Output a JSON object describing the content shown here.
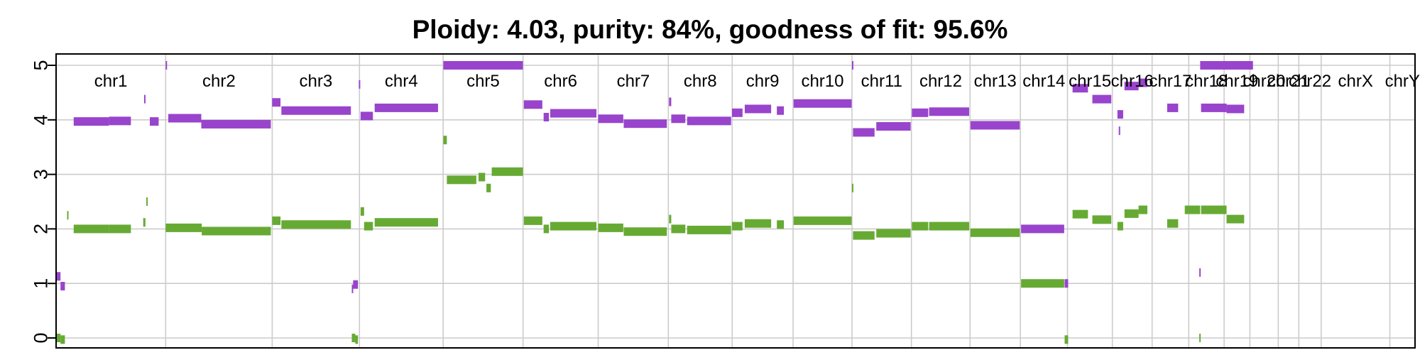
{
  "chart_data": {
    "type": "segment",
    "title": "Ploidy: 4.03, purity: 84%, goodness of fit: 95.6%",
    "xlabel": "",
    "ylabel": "",
    "ylim": [
      0,
      5
    ],
    "yticks": [
      0,
      1,
      2,
      3,
      4,
      5
    ],
    "grid": true,
    "colors": {
      "total": "#9944CC",
      "minor": "#66AA33",
      "grid": "#CCCCCC"
    },
    "chromosomes": [
      {
        "name": "chr1",
        "start": 0,
        "end": 248.96
      },
      {
        "name": "chr2",
        "start": 248.96,
        "end": 491.15
      },
      {
        "name": "chr3",
        "start": 491.15,
        "end": 689.45
      },
      {
        "name": "chr4",
        "start": 689.45,
        "end": 879.66
      },
      {
        "name": "chr5",
        "start": 879.66,
        "end": 1061.2
      },
      {
        "name": "chr6",
        "start": 1061.2,
        "end": 1232.0
      },
      {
        "name": "chr7",
        "start": 1232.0,
        "end": 1391.35
      },
      {
        "name": "chr8",
        "start": 1391.35,
        "end": 1536.49
      },
      {
        "name": "chr9",
        "start": 1536.49,
        "end": 1674.88
      },
      {
        "name": "chr10",
        "start": 1674.88,
        "end": 1808.68
      },
      {
        "name": "chr11",
        "start": 1808.68,
        "end": 1943.77
      },
      {
        "name": "chr12",
        "start": 1943.77,
        "end": 2077.05
      },
      {
        "name": "chr13",
        "start": 2077.05,
        "end": 2191.42
      },
      {
        "name": "chr14",
        "start": 2191.42,
        "end": 2298.46
      },
      {
        "name": "chr15",
        "start": 2298.46,
        "end": 2400.45
      },
      {
        "name": "chr16",
        "start": 2400.45,
        "end": 2490.79
      },
      {
        "name": "chr17",
        "start": 2490.79,
        "end": 2574.05
      },
      {
        "name": "chr18",
        "start": 2574.05,
        "end": 2654.43
      },
      {
        "name": "chr19",
        "start": 2654.43,
        "end": 2713.05
      },
      {
        "name": "chr20",
        "start": 2713.05,
        "end": 2777.5
      },
      {
        "name": "chr21",
        "start": 2777.5,
        "end": 2824.21
      },
      {
        "name": "chr22",
        "start": 2824.21,
        "end": 2875.03
      },
      {
        "name": "chrX",
        "start": 2875.03,
        "end": 3031.07
      },
      {
        "name": "chrY",
        "start": 3031.07,
        "end": 3088.3
      }
    ],
    "series": [
      {
        "key": "total",
        "segments": [
          [
            0,
            10,
            1.13
          ],
          [
            10,
            20,
            0.95
          ],
          [
            40,
            120,
            3.97
          ],
          [
            120,
            170,
            3.98
          ],
          [
            200,
            203,
            4.38
          ],
          [
            213,
            233,
            3.97
          ],
          [
            248.96,
            249.5,
            5.0
          ],
          [
            255,
            330,
            4.03
          ],
          [
            330,
            488,
            3.92
          ],
          [
            491,
            510,
            4.32
          ],
          [
            512,
            670,
            4.17
          ],
          [
            672,
            675,
            0.9
          ],
          [
            675,
            686,
            0.98
          ],
          [
            688,
            689,
            4.65
          ],
          [
            692,
            720,
            4.07
          ],
          [
            724,
            868,
            4.22
          ],
          [
            880,
            1061,
            5.0
          ],
          [
            1063,
            1105,
            4.28
          ],
          [
            1108,
            1120,
            4.05
          ],
          [
            1123,
            1228,
            4.12
          ],
          [
            1232,
            1289,
            4.02
          ],
          [
            1290,
            1388,
            3.93
          ],
          [
            1393,
            1398,
            4.33
          ],
          [
            1398,
            1430,
            4.02
          ],
          [
            1434,
            1534,
            3.98
          ],
          [
            1536,
            1560,
            4.13
          ],
          [
            1565,
            1625,
            4.2
          ],
          [
            1638,
            1654,
            4.17
          ],
          [
            1676,
            1808,
            4.3
          ],
          [
            1808.7,
            1810,
            5.0
          ],
          [
            1811,
            1860,
            3.77
          ],
          [
            1864,
            1942,
            3.88
          ],
          [
            1945,
            1982,
            4.13
          ],
          [
            1984,
            2075,
            4.15
          ],
          [
            2078,
            2190,
            3.9
          ],
          [
            2193,
            2291,
            2.0
          ],
          [
            2292,
            2300,
            1.0
          ],
          [
            2310,
            2345,
            4.58
          ],
          [
            2355,
            2398,
            4.38
          ],
          [
            2412,
            2425,
            4.1
          ],
          [
            2415,
            2418,
            3.8
          ],
          [
            2428,
            2460,
            4.62
          ],
          [
            2460,
            2480,
            4.68
          ],
          [
            2525,
            2550,
            4.22
          ],
          [
            2598,
            2600,
            1.2
          ],
          [
            2600,
            2720,
            5.0
          ],
          [
            2602,
            2660,
            4.22
          ],
          [
            2660,
            2700,
            4.2
          ]
        ]
      },
      {
        "key": "minor",
        "segments": [
          [
            0,
            10,
            0.0
          ],
          [
            10,
            20,
            -0.03
          ],
          [
            25,
            27,
            2.25
          ],
          [
            40,
            120,
            2.0
          ],
          [
            120,
            170,
            2.0
          ],
          [
            198,
            203,
            2.12
          ],
          [
            205,
            207,
            2.5
          ],
          [
            248.96,
            331,
            2.02
          ],
          [
            331,
            488,
            1.96
          ],
          [
            491,
            510,
            2.15
          ],
          [
            512,
            670,
            2.08
          ],
          [
            672,
            680,
            0.0
          ],
          [
            680,
            686,
            -0.03
          ],
          [
            692,
            700,
            2.32
          ],
          [
            700,
            720,
            2.05
          ],
          [
            724,
            868,
            2.12
          ],
          [
            880,
            888,
            3.63
          ],
          [
            888,
            955,
            2.9
          ],
          [
            960,
            975,
            2.95
          ],
          [
            978,
            988,
            2.75
          ],
          [
            990,
            1061,
            3.05
          ],
          [
            1063,
            1105,
            2.15
          ],
          [
            1108,
            1120,
            2.0
          ],
          [
            1123,
            1228,
            2.05
          ],
          [
            1232,
            1289,
            2.02
          ],
          [
            1290,
            1388,
            1.95
          ],
          [
            1393,
            1398,
            2.18
          ],
          [
            1398,
            1430,
            2.0
          ],
          [
            1434,
            1534,
            1.98
          ],
          [
            1536,
            1560,
            2.05
          ],
          [
            1565,
            1625,
            2.1
          ],
          [
            1638,
            1654,
            2.08
          ],
          [
            1676,
            1808,
            2.15
          ],
          [
            1808.7,
            1810,
            2.75
          ],
          [
            1811,
            1860,
            1.88
          ],
          [
            1864,
            1942,
            1.92
          ],
          [
            1945,
            1982,
            2.05
          ],
          [
            1984,
            2075,
            2.05
          ],
          [
            2078,
            2190,
            1.93
          ],
          [
            2193,
            2291,
            1.0
          ],
          [
            2292,
            2300,
            -0.03
          ],
          [
            2310,
            2345,
            2.27
          ],
          [
            2355,
            2398,
            2.17
          ],
          [
            2412,
            2425,
            2.05
          ],
          [
            2428,
            2460,
            2.28
          ],
          [
            2460,
            2480,
            2.35
          ],
          [
            2525,
            2550,
            2.1
          ],
          [
            2565,
            2600,
            2.35
          ],
          [
            2598,
            2600,
            0.0
          ],
          [
            2602,
            2660,
            2.35
          ],
          [
            2660,
            2700,
            2.18
          ]
        ]
      }
    ]
  }
}
